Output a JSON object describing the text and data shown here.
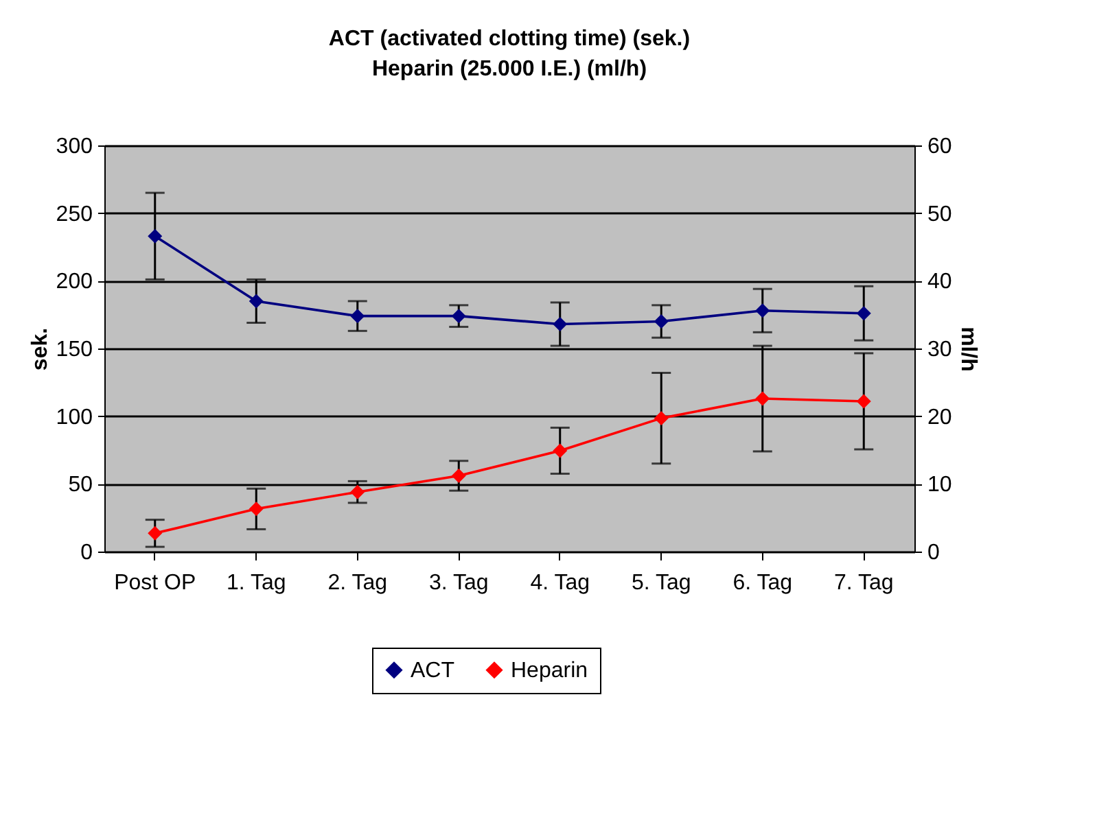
{
  "chart_data": {
    "type": "line",
    "title": "ACT (activated clotting time) (sek.)",
    "subtitle": "Heparin (25.000 I.E.) (ml/h)",
    "categories": [
      "Post OP",
      "1. Tag",
      "2. Tag",
      "3. Tag",
      "4. Tag",
      "5. Tag",
      "6. Tag",
      "7. Tag"
    ],
    "series": [
      {
        "name": "ACT",
        "color": "#000080",
        "values": [
          233,
          185,
          174,
          174,
          168,
          170,
          178,
          176
        ],
        "errors": [
          32,
          16,
          11,
          8,
          16,
          12,
          16,
          20
        ]
      },
      {
        "name": "Heparin",
        "color": "#ff0000",
        "axis": "y2",
        "values": [
          2.7,
          6.3,
          8.8,
          11.2,
          14.9,
          19.7,
          22.6,
          22.2
        ],
        "errors": [
          2,
          3,
          1.6,
          2.2,
          3.4,
          6.7,
          7.8,
          7.1
        ]
      }
    ],
    "ylabel": "sek.",
    "y2label": "ml/h",
    "ylim": [
      0,
      300
    ],
    "yticks": [
      0,
      50,
      100,
      150,
      200,
      250,
      300
    ],
    "y2lim": [
      0,
      60
    ],
    "y2ticks": [
      0,
      10,
      20,
      30,
      40,
      50,
      60
    ],
    "grid": "y",
    "legend": "bottom",
    "marker": "diamond"
  }
}
